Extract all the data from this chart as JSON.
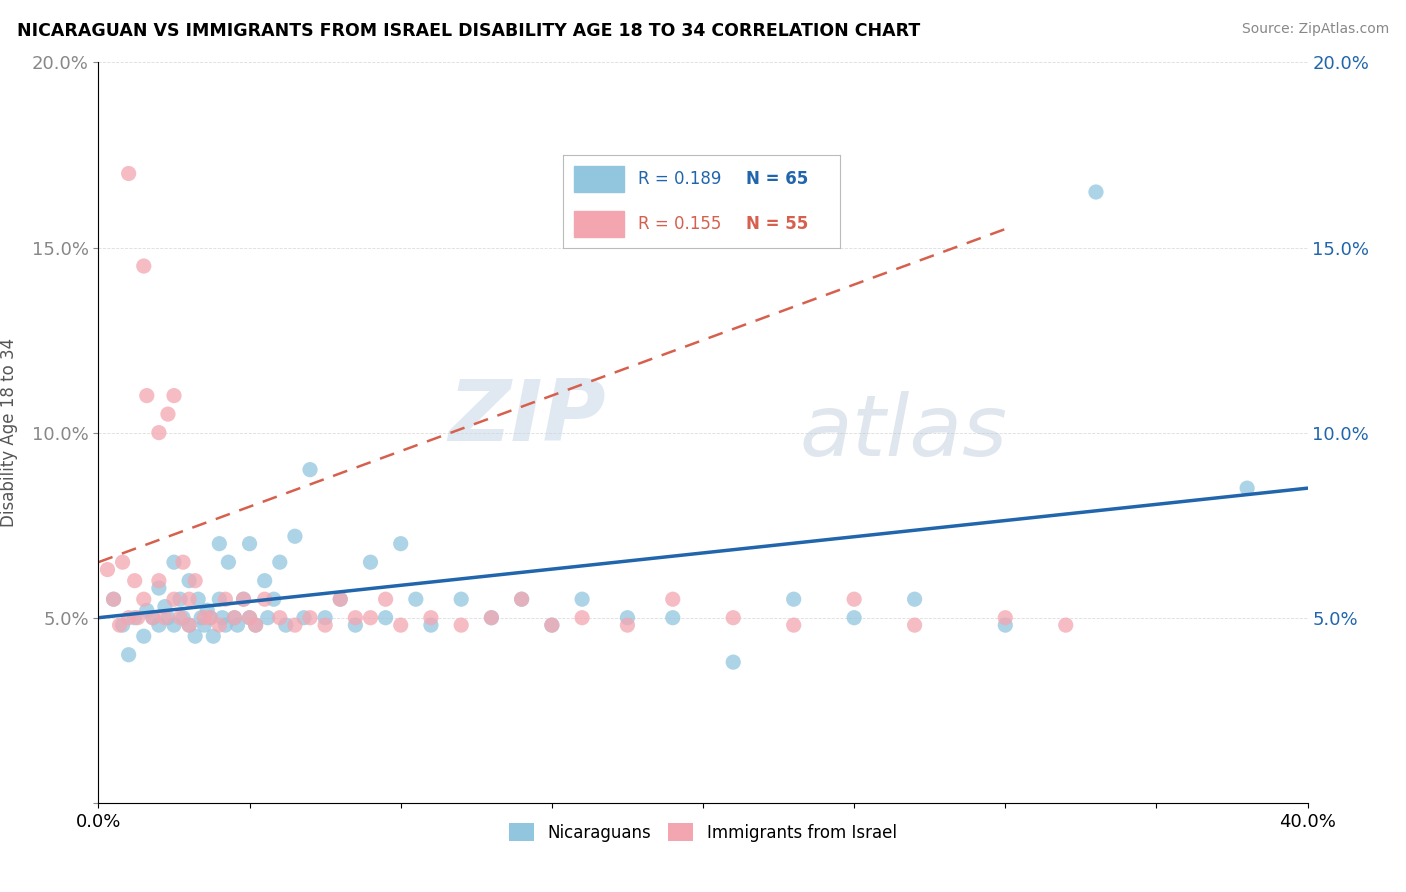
{
  "title": "NICARAGUAN VS IMMIGRANTS FROM ISRAEL DISABILITY AGE 18 TO 34 CORRELATION CHART",
  "source": "Source: ZipAtlas.com",
  "ylabel": "Disability Age 18 to 34",
  "xlim": [
    0.0,
    0.4
  ],
  "ylim": [
    0.0,
    0.2
  ],
  "r_nicaraguan": 0.189,
  "n_nicaraguan": 65,
  "r_israel": 0.155,
  "n_israel": 55,
  "color_nicaraguan": "#92c5de",
  "color_israel": "#f4a6b0",
  "trendline_color_nicaraguan": "#2166ac",
  "trendline_color_israel": "#d6604d",
  "watermark_zip": "ZIP",
  "watermark_atlas": "atlas",
  "legend_labels": [
    "Nicaraguans",
    "Immigrants from Israel"
  ],
  "nicaraguan_x": [
    0.005,
    0.008,
    0.01,
    0.012,
    0.015,
    0.016,
    0.018,
    0.02,
    0.02,
    0.022,
    0.023,
    0.025,
    0.025,
    0.027,
    0.028,
    0.03,
    0.03,
    0.032,
    0.033,
    0.034,
    0.035,
    0.036,
    0.037,
    0.038,
    0.04,
    0.04,
    0.041,
    0.042,
    0.043,
    0.045,
    0.046,
    0.048,
    0.05,
    0.05,
    0.052,
    0.055,
    0.056,
    0.058,
    0.06,
    0.062,
    0.065,
    0.068,
    0.07,
    0.075,
    0.08,
    0.085,
    0.09,
    0.095,
    0.1,
    0.105,
    0.11,
    0.12,
    0.13,
    0.14,
    0.15,
    0.16,
    0.175,
    0.19,
    0.21,
    0.23,
    0.25,
    0.27,
    0.3,
    0.33,
    0.38
  ],
  "nicaraguan_y": [
    0.055,
    0.048,
    0.04,
    0.05,
    0.045,
    0.052,
    0.05,
    0.058,
    0.048,
    0.053,
    0.05,
    0.048,
    0.065,
    0.055,
    0.05,
    0.048,
    0.06,
    0.045,
    0.055,
    0.05,
    0.048,
    0.052,
    0.05,
    0.045,
    0.055,
    0.07,
    0.05,
    0.048,
    0.065,
    0.05,
    0.048,
    0.055,
    0.05,
    0.07,
    0.048,
    0.06,
    0.05,
    0.055,
    0.065,
    0.048,
    0.072,
    0.05,
    0.09,
    0.05,
    0.055,
    0.048,
    0.065,
    0.05,
    0.07,
    0.055,
    0.048,
    0.055,
    0.05,
    0.055,
    0.048,
    0.055,
    0.05,
    0.05,
    0.038,
    0.055,
    0.05,
    0.055,
    0.048,
    0.165,
    0.085
  ],
  "israel_x": [
    0.003,
    0.005,
    0.007,
    0.008,
    0.01,
    0.01,
    0.012,
    0.013,
    0.015,
    0.015,
    0.016,
    0.018,
    0.02,
    0.02,
    0.022,
    0.023,
    0.025,
    0.025,
    0.027,
    0.028,
    0.03,
    0.03,
    0.032,
    0.035,
    0.037,
    0.04,
    0.042,
    0.045,
    0.048,
    0.05,
    0.052,
    0.055,
    0.06,
    0.065,
    0.07,
    0.075,
    0.08,
    0.085,
    0.09,
    0.095,
    0.1,
    0.11,
    0.12,
    0.13,
    0.14,
    0.15,
    0.16,
    0.175,
    0.19,
    0.21,
    0.23,
    0.25,
    0.27,
    0.3,
    0.32
  ],
  "israel_y": [
    0.063,
    0.055,
    0.048,
    0.065,
    0.17,
    0.05,
    0.06,
    0.05,
    0.055,
    0.145,
    0.11,
    0.05,
    0.06,
    0.1,
    0.05,
    0.105,
    0.055,
    0.11,
    0.05,
    0.065,
    0.048,
    0.055,
    0.06,
    0.05,
    0.05,
    0.048,
    0.055,
    0.05,
    0.055,
    0.05,
    0.048,
    0.055,
    0.05,
    0.048,
    0.05,
    0.048,
    0.055,
    0.05,
    0.05,
    0.055,
    0.048,
    0.05,
    0.048,
    0.05,
    0.055,
    0.048,
    0.05,
    0.048,
    0.055,
    0.05,
    0.048,
    0.055,
    0.048,
    0.05,
    0.048
  ]
}
